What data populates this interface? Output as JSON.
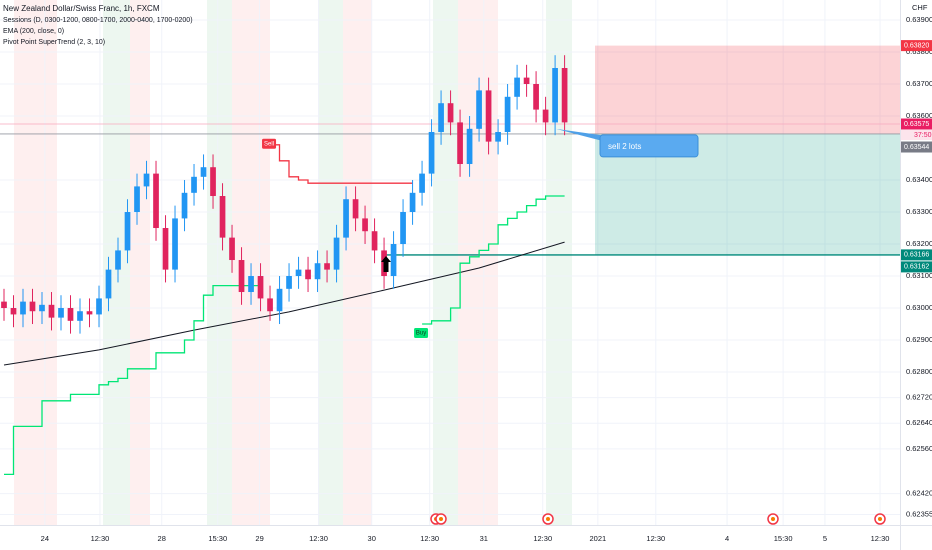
{
  "chart_data": {
    "type": "candlestick",
    "title": "New Zealand Dollar/Swiss Franc, 1h, FXCM",
    "legend": [
      "Sessions (D, 0300-1200, 0800-1700, 2000-0400, 1700-0200)",
      "EMA (200, close, 0)",
      "Pivot Point SuperTrend (2, 3, 10)"
    ],
    "currency": "CHF",
    "countdown": "37:50",
    "up_color": "#2196f3",
    "down_color": "#e0245e",
    "open": [
      0.6302,
      0.63,
      0.6298,
      0.6302,
      0.6299,
      0.6301,
      0.6297,
      0.63,
      0.6296,
      0.6299,
      0.6298,
      0.6303,
      0.6312,
      0.6318,
      0.633,
      0.6338,
      0.6342,
      0.6325,
      0.6312,
      0.6328,
      0.6336,
      0.6341,
      0.6344,
      0.6335,
      0.6322,
      0.6315,
      0.6305,
      0.631,
      0.6303,
      0.6299,
      0.6306,
      0.631,
      0.6312,
      0.6309,
      0.6314,
      0.6312,
      0.6322,
      0.6334,
      0.6328,
      0.6324,
      0.6318,
      0.631,
      0.632,
      0.633,
      0.6336,
      0.6342,
      0.6355,
      0.6364,
      0.6358,
      0.6345,
      0.6356,
      0.6368,
      0.6352,
      0.6355,
      0.6366,
      0.6372,
      0.637,
      0.6362,
      0.6358,
      0.6375
    ],
    "high": [
      0.6306,
      0.6304,
      0.6306,
      0.6306,
      0.6305,
      0.6305,
      0.6304,
      0.6304,
      0.6303,
      0.6303,
      0.6307,
      0.6316,
      0.6322,
      0.6334,
      0.6342,
      0.6346,
      0.6346,
      0.6329,
      0.6332,
      0.634,
      0.6345,
      0.6348,
      0.6348,
      0.6339,
      0.6326,
      0.6319,
      0.6314,
      0.6314,
      0.6307,
      0.631,
      0.6314,
      0.6316,
      0.6316,
      0.6318,
      0.6318,
      0.6326,
      0.6338,
      0.6338,
      0.6332,
      0.6328,
      0.6322,
      0.6324,
      0.6334,
      0.634,
      0.6346,
      0.6359,
      0.6368,
      0.6368,
      0.6362,
      0.636,
      0.6372,
      0.6372,
      0.6359,
      0.637,
      0.6376,
      0.6376,
      0.6374,
      0.6366,
      0.6379,
      0.6379
    ],
    "low": [
      0.6296,
      0.6294,
      0.6294,
      0.6295,
      0.6295,
      0.6293,
      0.6293,
      0.6292,
      0.6292,
      0.6294,
      0.6294,
      0.6299,
      0.6308,
      0.6314,
      0.6326,
      0.6334,
      0.6321,
      0.6308,
      0.6308,
      0.6324,
      0.6332,
      0.6337,
      0.6331,
      0.6318,
      0.6311,
      0.6301,
      0.6301,
      0.6299,
      0.6296,
      0.6295,
      0.6302,
      0.6306,
      0.6305,
      0.6305,
      0.6308,
      0.6308,
      0.6318,
      0.6324,
      0.632,
      0.6314,
      0.6306,
      0.6306,
      0.6316,
      0.6326,
      0.6332,
      0.6338,
      0.6351,
      0.6354,
      0.6341,
      0.6341,
      0.6352,
      0.6348,
      0.6348,
      0.6351,
      0.6362,
      0.6366,
      0.6358,
      0.6354,
      0.6354,
      0.6354
    ],
    "close": [
      0.63,
      0.6298,
      0.6302,
      0.6299,
      0.6301,
      0.6297,
      0.63,
      0.6296,
      0.6299,
      0.6298,
      0.6303,
      0.6312,
      0.6318,
      0.633,
      0.6338,
      0.6342,
      0.6325,
      0.6312,
      0.6328,
      0.6336,
      0.6341,
      0.6344,
      0.6335,
      0.6322,
      0.6315,
      0.6305,
      0.631,
      0.6303,
      0.6299,
      0.6306,
      0.631,
      0.6312,
      0.6309,
      0.6314,
      0.6312,
      0.6322,
      0.6334,
      0.6328,
      0.6324,
      0.6318,
      0.631,
      0.632,
      0.633,
      0.6336,
      0.6342,
      0.6355,
      0.6364,
      0.6358,
      0.6345,
      0.6356,
      0.6368,
      0.6352,
      0.6355,
      0.6366,
      0.6372,
      0.637,
      0.6362,
      0.6358,
      0.6375,
      0.6358
    ],
    "xlim": [
      -0.42,
      94.3
    ],
    "xticks": [
      {
        "value": 4.3,
        "label": "24"
      },
      {
        "value": 10.1,
        "label": "12:30"
      },
      {
        "value": 16.6,
        "label": "28"
      },
      {
        "value": 22.5,
        "label": "15:30"
      },
      {
        "value": 26.9,
        "label": "29"
      },
      {
        "value": 33.1,
        "label": "12:30"
      },
      {
        "value": 38.7,
        "label": "30"
      },
      {
        "value": 44.8,
        "label": "12:30"
      },
      {
        "value": 50.5,
        "label": "31"
      },
      {
        "value": 56.7,
        "label": "12:30"
      },
      {
        "value": 62.5,
        "label": "2021"
      },
      {
        "value": 68.6,
        "label": "12:30"
      },
      {
        "value": 76.1,
        "label": "4"
      },
      {
        "value": 82,
        "label": "15:30"
      },
      {
        "value": 86.4,
        "label": "5"
      },
      {
        "value": 92.2,
        "label": "12:30"
      }
    ],
    "ylim": [
      0.62322,
      0.639625
    ],
    "yticks": [
      {
        "value": 0.639,
        "label": "0.63900"
      },
      {
        "value": 0.638,
        "label": "0.63800"
      },
      {
        "value": 0.637,
        "label": "0.63700"
      },
      {
        "value": 0.636,
        "label": "0.63600"
      },
      {
        "value": 0.634,
        "label": "0.63400"
      },
      {
        "value": 0.633,
        "label": "0.63300"
      },
      {
        "value": 0.632,
        "label": "0.63200"
      },
      {
        "value": 0.631,
        "label": "0.63100"
      },
      {
        "value": 0.63,
        "label": "0.63000"
      },
      {
        "value": 0.629,
        "label": "0.62900"
      },
      {
        "value": 0.628,
        "label": "0.62800"
      },
      {
        "value": 0.6272,
        "label": "0.62720"
      },
      {
        "value": 0.6264,
        "label": "0.62640"
      },
      {
        "value": 0.6256,
        "label": "0.62560"
      },
      {
        "value": 0.6242,
        "label": "0.62420"
      },
      {
        "value": 0.62355,
        "label": "0.62355"
      }
    ],
    "grid": true,
    "ema": {
      "color": "#131722",
      "x": [
        0,
        10,
        20,
        30,
        40,
        50,
        59
      ],
      "values": [
        0.62822,
        0.62869,
        0.62931,
        0.62988,
        0.63056,
        0.63125,
        0.63206
      ]
    },
    "supertrend": [
      {
        "color": "#00e676",
        "values": [
          0.6248,
          0.6263,
          0.6263,
          0.6263,
          0.6271,
          0.6271,
          0.6271,
          0.6273,
          0.6273,
          0.6273,
          0.6276,
          0.6277,
          0.6278,
          0.6281,
          0.6281,
          0.6281,
          0.6286,
          0.6286,
          0.6286,
          0.629,
          0.6296,
          0.6304,
          0.6307,
          0.6307,
          0.6307,
          0.6307,
          0.6307,
          0.6307,
          null,
          null,
          null,
          null,
          null,
          null,
          null,
          null,
          null,
          null,
          null,
          null,
          null,
          null,
          null,
          null,
          0.6295,
          0.6296,
          0.6296,
          0.63,
          0.6314,
          0.6316,
          0.6318,
          0.632,
          0.6326,
          0.6328,
          0.633,
          0.6332,
          0.6334,
          0.6335,
          0.6335,
          0.6335
        ]
      },
      {
        "color": "#f23645",
        "values": [
          null,
          null,
          null,
          null,
          null,
          null,
          null,
          null,
          null,
          null,
          null,
          null,
          null,
          null,
          null,
          null,
          null,
          null,
          null,
          null,
          null,
          null,
          null,
          null,
          null,
          null,
          null,
          null,
          0.6351,
          0.6346,
          0.6341,
          0.634,
          0.6339,
          0.6339,
          0.6339,
          0.6339,
          0.6339,
          0.6339,
          0.6339,
          0.6339,
          0.6339,
          0.6339,
          0.6339,
          0.6339,
          null,
          null,
          null,
          null,
          null,
          null,
          null,
          null,
          null,
          null,
          null,
          null,
          null,
          null,
          null,
          null
        ]
      }
    ],
    "signals": [
      {
        "label": "Sell",
        "x": 28,
        "value": 0.6351
      },
      {
        "label": "Buy",
        "x": 44,
        "value": 0.6295
      }
    ],
    "position": {
      "start_x": 62.2,
      "stop": 0.6382,
      "entry": 0.63544,
      "target": 0.63166,
      "note": "sell 2 lots"
    },
    "horizontal_lines": [
      {
        "value": 0.63575,
        "color": "#f7a9be"
      },
      {
        "value": 0.63544,
        "color": "#9598a1"
      },
      {
        "value": 0.63166,
        "color": "#00897b",
        "from_x": 40.2
      }
    ],
    "price_tags": [
      {
        "value": 0.6382,
        "label": "0.63820",
        "color": "#f23645"
      },
      {
        "value": 0.63575,
        "label": "0.63575",
        "color": "#e91e63"
      },
      {
        "value": 0.63544,
        "label": "0.63544",
        "color": "#787b86"
      },
      {
        "value": 0.63166,
        "label": "0.63166",
        "color": "#00897b"
      },
      {
        "value": 0.63162,
        "label": "0.63162",
        "color": "#00897b"
      }
    ]
  }
}
